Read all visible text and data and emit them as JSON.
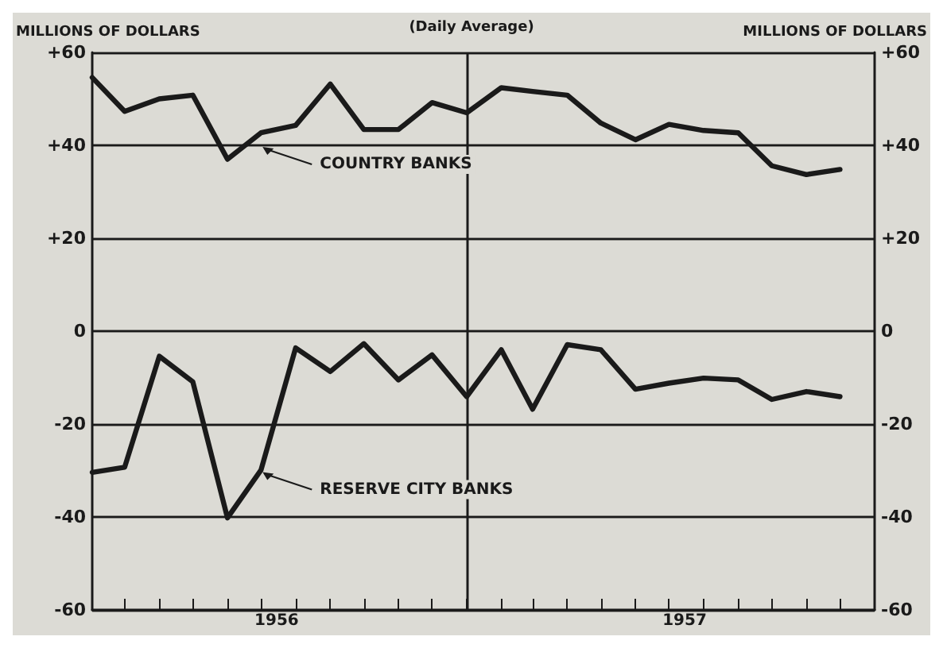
{
  "chart_data": {
    "type": "line",
    "title": "(Daily Average)",
    "ylabel": "MILLIONS OF DOLLARS",
    "y2label": "MILLIONS OF DOLLARS",
    "x": [
      "1956-02",
      "1956-03",
      "1956-04",
      "1956-05",
      "1956-06",
      "1956-07",
      "1956-08",
      "1956-09",
      "1956-10",
      "1956-11",
      "1956-12",
      "1957-01",
      "1957-02",
      "1957-03",
      "1957-04",
      "1957-05",
      "1957-06",
      "1957-07",
      "1957-08",
      "1957-09",
      "1957-10",
      "1957-11",
      "1957-12"
    ],
    "series": [
      {
        "color": "#1a1a1a",
        "values": [
          54.6,
          47.3,
          50,
          50.8,
          37,
          42.7,
          44.3,
          53.2,
          43.4,
          43.4,
          49.2,
          47,
          52.4,
          51.6,
          50.8,
          44.8,
          41.2,
          44.5,
          43.2,
          42.7,
          35.6,
          33.7,
          34.8
        ]
      },
      {
        "color": "#1a1a1a",
        "values": [
          -30.4,
          -29.3,
          -5.4,
          -10.9,
          -40.2,
          -29.9,
          -3.6,
          -8.7,
          -2.7,
          -10.5,
          -5.1,
          -14.1,
          -4,
          -16.8,
          -2.9,
          -4,
          -12.5,
          -11.2,
          -10.1,
          -10.5,
          -14.7,
          -13,
          -14.1
        ]
      }
    ],
    "xlim": [
      "1956-02",
      "1958-01"
    ],
    "xticks": [
      {
        "value": "1956-03",
        "label": null
      },
      {
        "value": "1956-04",
        "label": null
      },
      {
        "value": "1956-05",
        "label": null
      },
      {
        "value": "1956-06",
        "label": null
      },
      {
        "value": "1956-07",
        "label": null
      },
      {
        "value": "1956-08",
        "label": null
      },
      {
        "value": "1956-09",
        "label": null
      },
      {
        "value": "1956-10",
        "label": null
      },
      {
        "value": "1956-11",
        "label": null
      },
      {
        "value": "1956-12",
        "label": null
      },
      {
        "value": "1957-01",
        "label": null
      },
      {
        "value": "1957-02",
        "label": null
      },
      {
        "value": "1957-03",
        "label": null
      },
      {
        "value": "1957-04",
        "label": null
      },
      {
        "value": "1957-05",
        "label": null
      },
      {
        "value": "1957-06",
        "label": null
      },
      {
        "value": "1957-07",
        "label": null
      },
      {
        "value": "1957-08",
        "label": null
      },
      {
        "value": "1957-09",
        "label": null
      },
      {
        "value": "1957-10",
        "label": null
      },
      {
        "value": "1957-11",
        "label": null
      },
      {
        "value": "1957-12",
        "label": null
      },
      {
        "value": "1956-07-15",
        "label": "1956"
      },
      {
        "value": "1957-07-15",
        "label": "1957"
      }
    ],
    "ylim": [
      -60,
      60
    ],
    "yticks": [
      {
        "value": -60,
        "label": "-60"
      },
      {
        "value": -40,
        "label": "-40"
      },
      {
        "value": -20,
        "label": "-20"
      },
      0,
      {
        "value": 20,
        "label": "+20"
      },
      {
        "value": 40,
        "label": "+40"
      },
      {
        "value": 60,
        "label": "+60"
      }
    ],
    "y2lim": [
      -60,
      60
    ],
    "y2ticks": [
      {
        "value": -60,
        "label": "-60"
      },
      {
        "value": -40,
        "label": "-40"
      },
      {
        "value": -20,
        "label": "-20"
      },
      0,
      {
        "value": 20,
        "label": "+20"
      },
      {
        "value": 40,
        "label": "+40"
      },
      {
        "value": 60,
        "label": "+60"
      }
    ],
    "grid": "y",
    "marker": "none",
    "line_style": "solid",
    "ref_lines": [
      {
        "axis": "x",
        "value": "1957-01",
        "color": "#1a1a1a"
      }
    ],
    "annotations": [
      {
        "text": "COUNTRY BANKS",
        "x": "1956-07",
        "y": 40
      },
      {
        "text": "RESERVE CITY BANKS",
        "x": "1956-07",
        "y": -30
      }
    ]
  }
}
